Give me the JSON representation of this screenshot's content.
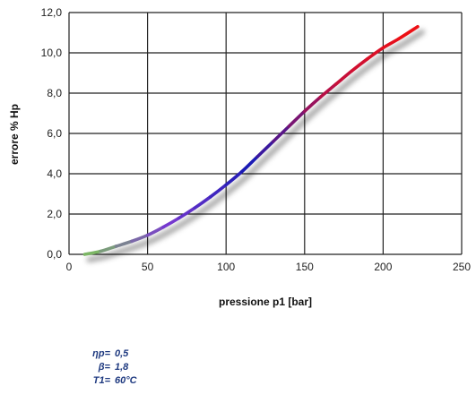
{
  "chart_data": {
    "type": "line",
    "xlabel": "pressione p1 [bar]",
    "ylabel": "errore % Hp",
    "xlim": [
      0,
      250
    ],
    "ylim": [
      0,
      12
    ],
    "x_ticks": [
      "0",
      "50",
      "100",
      "150",
      "200",
      "250"
    ],
    "y_ticks": [
      "0,0",
      "2,0",
      "4,0",
      "6,0",
      "8,0",
      "10,0",
      "12,0"
    ],
    "grid": true,
    "series": [
      {
        "x": [
          10,
          20,
          30,
          40,
          50,
          60,
          70,
          80,
          90,
          100,
          110,
          120,
          130,
          140,
          150,
          160,
          170,
          180,
          190,
          200,
          210,
          222
        ],
        "y": [
          0.0,
          0.15,
          0.4,
          0.65,
          0.95,
          1.35,
          1.8,
          2.3,
          2.85,
          3.45,
          4.1,
          4.85,
          5.6,
          6.35,
          7.1,
          7.8,
          8.45,
          9.1,
          9.7,
          10.25,
          10.7,
          11.3
        ]
      }
    ],
    "colors": {
      "line_gradient": [
        "#7cc35a",
        "#7a3ad0",
        "#1a1ab4",
        "#c01040",
        "#f21010"
      ],
      "grid": "#222222"
    }
  },
  "parameters": [
    {
      "label": "ηp=",
      "value": "0,5"
    },
    {
      "label": "β=",
      "value": "1,8"
    },
    {
      "label": "T1=",
      "value": "60°C"
    }
  ]
}
